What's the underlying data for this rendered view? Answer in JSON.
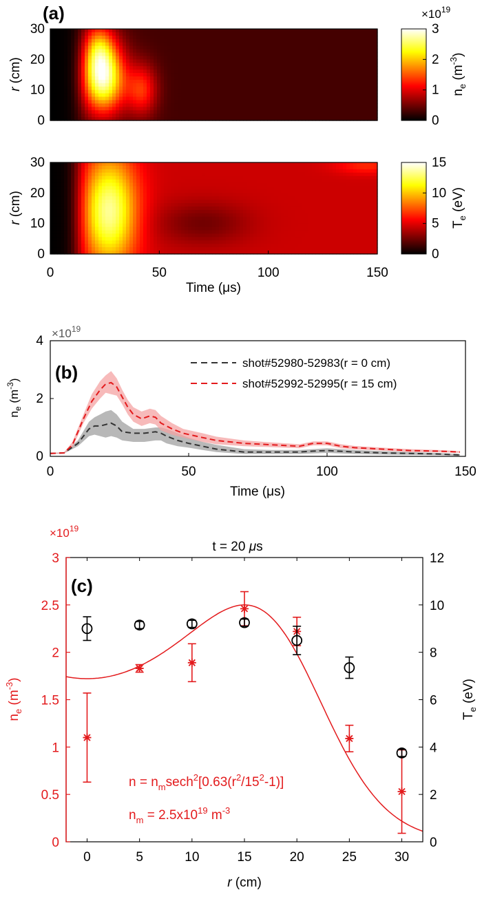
{
  "colors": {
    "axis": "#000000",
    "red": "#e31a1c",
    "black_series": "#333333",
    "red_band": "#f4a3a3",
    "grey_band": "#9a9a9a"
  },
  "panel_labels": {
    "a": "(a)",
    "b": "(b)",
    "c": "(c)"
  },
  "chart_data": [
    {
      "id": "a-ne",
      "type": "heatmap",
      "xlabel": "",
      "ylabel": "r (cm)",
      "xlim": [
        0,
        150
      ],
      "ylim": [
        0,
        30
      ],
      "yticks": [
        0,
        10,
        20,
        30
      ],
      "colorbar": {
        "label": "ne (m-3)",
        "exponent": "×10^19",
        "range": [
          0,
          3
        ],
        "ticks": [
          0,
          1,
          2,
          3
        ],
        "colormap": "hot"
      },
      "blobs": [
        {
          "t": 24,
          "r": 14,
          "st": 7,
          "sr": 8,
          "v": 2.5
        },
        {
          "t": 42,
          "r": 10,
          "st": 5,
          "sr": 6,
          "v": 1.0
        },
        {
          "t": 22,
          "r": 24,
          "st": 5,
          "sr": 6,
          "v": 1.0
        }
      ],
      "background": 0.3,
      "rise_time": 12
    },
    {
      "id": "a-te",
      "type": "heatmap",
      "xlabel": "Time (μs)",
      "ylabel": "r (cm)",
      "xlim": [
        0,
        150
      ],
      "ylim": [
        0,
        30
      ],
      "xticks": [
        0,
        50,
        100,
        150
      ],
      "yticks": [
        0,
        10,
        20,
        30
      ],
      "colorbar": {
        "label": "Te (eV)",
        "range": [
          0,
          15
        ],
        "ticks": [
          0,
          5,
          10,
          15
        ],
        "colormap": "hot"
      },
      "blobs": [
        {
          "t": 27,
          "r": 14,
          "st": 9,
          "sr": 13,
          "v": 9.0
        },
        {
          "t": 145,
          "r": 29,
          "st": 10,
          "sr": 2,
          "v": 2.0
        }
      ],
      "background": 4.5,
      "dip": {
        "t": 70,
        "r": 10,
        "st": 15,
        "sr": 5,
        "v": -2.0
      },
      "rise_time": 12
    },
    {
      "id": "b",
      "type": "line",
      "xlabel": "Time (μs)",
      "ylabel": "ne (m-3)",
      "exponent": "×10^19",
      "xlim": [
        0,
        150
      ],
      "ylim": [
        0,
        4
      ],
      "xticks": [
        0,
        50,
        100,
        150
      ],
      "yticks": [
        0,
        2,
        4
      ],
      "series": [
        {
          "name": "shot#52980-52983(r = 0 cm)",
          "color": "#333333",
          "band_color": "#9a9a9a",
          "x": [
            0,
            5,
            10,
            14,
            16,
            18,
            20,
            22,
            24,
            26,
            30,
            34,
            38,
            40,
            42,
            46,
            50,
            55,
            60,
            70,
            80,
            90,
            95,
            100,
            110,
            120,
            130,
            140,
            148
          ],
          "y": [
            0.1,
            0.12,
            0.45,
            0.95,
            1.05,
            1.05,
            1.1,
            1.15,
            1.05,
            0.85,
            0.8,
            0.8,
            0.85,
            0.8,
            0.7,
            0.55,
            0.45,
            0.35,
            0.25,
            0.15,
            0.15,
            0.15,
            0.18,
            0.2,
            0.15,
            0.12,
            0.1,
            0.08,
            0.05
          ],
          "upper": [
            0.12,
            0.14,
            0.55,
            1.2,
            1.35,
            1.45,
            1.55,
            1.6,
            1.45,
            1.2,
            0.95,
            0.95,
            1.0,
            1.0,
            0.95,
            0.8,
            0.65,
            0.5,
            0.4,
            0.25,
            0.22,
            0.22,
            0.25,
            0.28,
            0.22,
            0.18,
            0.15,
            0.12,
            0.08
          ],
          "lower": [
            0.08,
            0.1,
            0.35,
            0.7,
            0.75,
            0.7,
            0.65,
            0.7,
            0.65,
            0.55,
            0.5,
            0.5,
            0.55,
            0.55,
            0.45,
            0.35,
            0.3,
            0.22,
            0.15,
            0.08,
            0.08,
            0.08,
            0.1,
            0.12,
            0.08,
            0.06,
            0.05,
            0.04,
            0.02
          ]
        },
        {
          "name": "shot#52992-52995(r = 15 cm)",
          "color": "#e31a1c",
          "band_color": "#f4a3a3",
          "x": [
            0,
            5,
            8,
            12,
            15,
            18,
            20,
            22,
            24,
            26,
            28,
            30,
            33,
            36,
            38,
            40,
            44,
            48,
            55,
            60,
            70,
            80,
            90,
            95,
            100,
            105,
            110,
            120,
            130,
            140,
            148
          ],
          "y": [
            0.1,
            0.12,
            0.4,
            1.3,
            1.9,
            2.3,
            2.5,
            2.55,
            2.4,
            2.05,
            1.7,
            1.45,
            1.3,
            1.4,
            1.35,
            1.15,
            0.95,
            0.8,
            0.65,
            0.55,
            0.45,
            0.4,
            0.35,
            0.45,
            0.45,
            0.35,
            0.3,
            0.25,
            0.2,
            0.18,
            0.15
          ],
          "upper": [
            0.12,
            0.14,
            0.5,
            1.45,
            2.15,
            2.6,
            2.8,
            2.95,
            2.7,
            2.3,
            1.95,
            1.7,
            1.55,
            1.65,
            1.6,
            1.4,
            1.15,
            0.95,
            0.8,
            0.68,
            0.55,
            0.48,
            0.42,
            0.52,
            0.52,
            0.42,
            0.36,
            0.3,
            0.25,
            0.22,
            0.18
          ],
          "lower": [
            0.08,
            0.1,
            0.3,
            1.15,
            1.65,
            2.0,
            2.2,
            2.15,
            2.1,
            1.8,
            1.45,
            1.2,
            1.05,
            1.15,
            1.1,
            0.9,
            0.75,
            0.65,
            0.5,
            0.42,
            0.35,
            0.32,
            0.28,
            0.38,
            0.38,
            0.28,
            0.24,
            0.2,
            0.15,
            0.14,
            0.12
          ]
        }
      ]
    },
    {
      "id": "c",
      "type": "scatter",
      "title": "t = 20 μs",
      "xlabel": "r (cm)",
      "ylabel_left": "ne (m-3)",
      "ylabel_right": "Te (eV)",
      "exponent": "×10^19",
      "xlim": [
        -2,
        32
      ],
      "xticks": [
        0,
        5,
        10,
        15,
        20,
        25,
        30
      ],
      "ylim_left": [
        0,
        3
      ],
      "yticks_left": [
        0,
        0.5,
        1,
        1.5,
        2,
        2.5,
        3
      ],
      "ylim_right": [
        0,
        12
      ],
      "yticks_right": [
        0,
        2,
        4,
        6,
        8,
        10,
        12
      ],
      "ne_points": {
        "x": [
          0,
          5,
          10,
          15,
          20,
          25,
          30
        ],
        "y": [
          1.1,
          1.83,
          1.89,
          2.46,
          2.22,
          1.09,
          0.53
        ],
        "err": [
          0.47,
          0.04,
          0.2,
          0.18,
          0.15,
          0.14,
          0.44
        ]
      },
      "te_points": {
        "x": [
          0,
          5,
          10,
          15,
          20,
          25,
          30
        ],
        "y": [
          9.0,
          9.15,
          9.2,
          9.25,
          8.5,
          7.35,
          3.75
        ],
        "err": [
          0.5,
          0.15,
          0.15,
          0.15,
          0.6,
          0.45,
          0.15
        ]
      },
      "fit": {
        "nm": 2.5,
        "k": 0.63,
        "r0": 15
      },
      "annotations": [
        "n = n",
        "m",
        "sech",
        "2",
        "[0.63(r",
        "2",
        "/15",
        "2",
        "-1)]",
        "n",
        "m",
        " = 2.5x10",
        "19",
        " m",
        "-3"
      ]
    }
  ]
}
